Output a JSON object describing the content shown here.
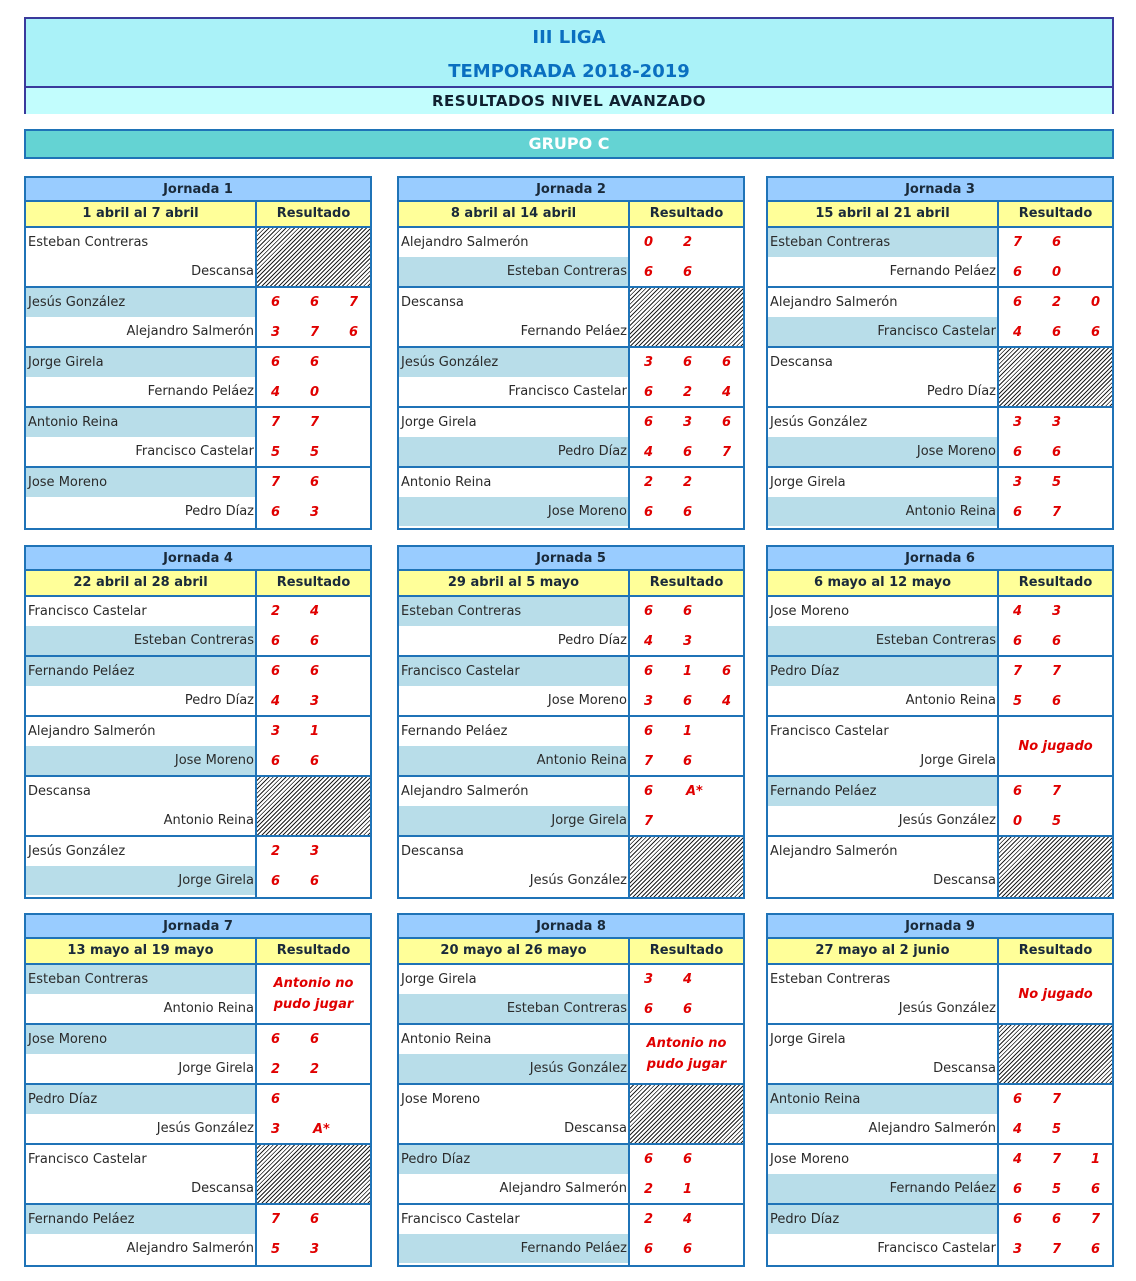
{
  "header": {
    "title": "III LIGA",
    "season": "TEMPORADA 2018-2019",
    "subtitle": "RESULTADOS NIVEL AVANZADO"
  },
  "group": "GRUPO C",
  "result_label": "Resultado",
  "colors": {
    "title": "#0a6fc0",
    "score": "#e00000",
    "winner_shade": "#b8dde9",
    "jornada_bg": "#99ccff",
    "date_bg": "#ffff99",
    "group_bg": "#64d3d3"
  },
  "jornadas": [
    {
      "title": "Jornada 1",
      "dates": "1 abril al 7 abril",
      "matches": [
        {
          "home": "Esteban Contreras",
          "away": "Descansa",
          "type": "bye",
          "winner": null
        },
        {
          "home": "Jesús González",
          "away": "Alejandro Salmerón",
          "type": "scores",
          "h": [
            "6",
            "6",
            "7"
          ],
          "a": [
            "3",
            "7",
            "6"
          ],
          "winner": "home"
        },
        {
          "home": "Jorge Girela",
          "away": "Fernando Peláez",
          "type": "scores",
          "h": [
            "6",
            "6"
          ],
          "a": [
            "4",
            "0"
          ],
          "winner": "home"
        },
        {
          "home": "Antonio Reina",
          "away": "Francisco Castelar",
          "type": "scores",
          "h": [
            "7",
            "7"
          ],
          "a": [
            "5",
            "5"
          ],
          "winner": "home"
        },
        {
          "home": "Jose Moreno",
          "away": "Pedro Díaz",
          "type": "scores",
          "h": [
            "7",
            "6"
          ],
          "a": [
            "6",
            "3"
          ],
          "winner": "home"
        }
      ]
    },
    {
      "title": "Jornada 2",
      "dates": "8 abril al 14 abril",
      "matches": [
        {
          "home": "Alejandro Salmerón",
          "away": "Esteban Contreras",
          "type": "scores",
          "h": [
            "0",
            "2"
          ],
          "a": [
            "6",
            "6"
          ],
          "winner": "away"
        },
        {
          "home": "Descansa",
          "away": "Fernando Peláez",
          "type": "bye",
          "winner": null
        },
        {
          "home": "Jesús González",
          "away": "Francisco Castelar",
          "type": "scores",
          "h": [
            "3",
            "6",
            "6"
          ],
          "a": [
            "6",
            "2",
            "4"
          ],
          "winner": "home"
        },
        {
          "home": "Jorge Girela",
          "away": "Pedro Díaz",
          "type": "scores",
          "h": [
            "6",
            "3",
            "6"
          ],
          "a": [
            "4",
            "6",
            "7"
          ],
          "winner": "away"
        },
        {
          "home": "Antonio Reina",
          "away": "Jose Moreno",
          "type": "scores",
          "h": [
            "2",
            "2"
          ],
          "a": [
            "6",
            "6"
          ],
          "winner": "away"
        }
      ]
    },
    {
      "title": "Jornada 3",
      "dates": "15 abril al 21 abril",
      "matches": [
        {
          "home": "Esteban Contreras",
          "away": "Fernando Peláez",
          "type": "scores",
          "h": [
            "7",
            "6"
          ],
          "a": [
            "6",
            "0"
          ],
          "winner": "home"
        },
        {
          "home": "Alejandro Salmerón",
          "away": "Francisco Castelar",
          "type": "scores",
          "h": [
            "6",
            "2",
            "0"
          ],
          "a": [
            "4",
            "6",
            "6"
          ],
          "winner": "away"
        },
        {
          "home": "Descansa",
          "away": "Pedro Díaz",
          "type": "bye",
          "winner": null
        },
        {
          "home": "Jesús González",
          "away": "Jose Moreno",
          "type": "scores",
          "h": [
            "3",
            "3"
          ],
          "a": [
            "6",
            "6"
          ],
          "winner": "away"
        },
        {
          "home": "Jorge Girela",
          "away": "Antonio Reina",
          "type": "scores",
          "h": [
            "3",
            "5"
          ],
          "a": [
            "6",
            "7"
          ],
          "winner": "away"
        }
      ]
    },
    {
      "title": "Jornada 4",
      "dates": "22 abril al 28 abril",
      "matches": [
        {
          "home": "Francisco Castelar",
          "away": "Esteban Contreras",
          "type": "scores",
          "h": [
            "2",
            "4"
          ],
          "a": [
            "6",
            "6"
          ],
          "winner": "away"
        },
        {
          "home": "Fernando Peláez",
          "away": "Pedro Díaz",
          "type": "scores",
          "h": [
            "6",
            "6"
          ],
          "a": [
            "4",
            "3"
          ],
          "winner": "home"
        },
        {
          "home": "Alejandro Salmerón",
          "away": "Jose Moreno",
          "type": "scores",
          "h": [
            "3",
            "1"
          ],
          "a": [
            "6",
            "6"
          ],
          "winner": "away"
        },
        {
          "home": "Descansa",
          "away": "Antonio Reina",
          "type": "bye",
          "winner": null
        },
        {
          "home": "Jesús González",
          "away": "Jorge Girela",
          "type": "scores",
          "h": [
            "2",
            "3"
          ],
          "a": [
            "6",
            "6"
          ],
          "winner": "away"
        }
      ]
    },
    {
      "title": "Jornada 5",
      "dates": "29 abril al 5 mayo",
      "matches": [
        {
          "home": "Esteban Contreras",
          "away": "Pedro Díaz",
          "type": "scores",
          "h": [
            "6",
            "6"
          ],
          "a": [
            "4",
            "3"
          ],
          "winner": "home"
        },
        {
          "home": "Francisco Castelar",
          "away": "Jose Moreno",
          "type": "scores",
          "h": [
            "6",
            "1",
            "6"
          ],
          "a": [
            "3",
            "6",
            "4"
          ],
          "winner": "home"
        },
        {
          "home": "Fernando Peláez",
          "away": "Antonio Reina",
          "type": "scores",
          "h": [
            "6",
            "1"
          ],
          "a": [
            "7",
            "6"
          ],
          "winner": "away"
        },
        {
          "home": "Alejandro Salmerón",
          "away": "Jorge Girela",
          "type": "scores",
          "h": [
            "6",
            "A*"
          ],
          "a": [
            "7"
          ],
          "winner": "away"
        },
        {
          "home": "Descansa",
          "away": "Jesús González",
          "type": "bye",
          "winner": null
        }
      ]
    },
    {
      "title": "Jornada 6",
      "dates": "6 mayo al 12 mayo",
      "matches": [
        {
          "home": "Jose Moreno",
          "away": "Esteban Contreras",
          "type": "scores",
          "h": [
            "4",
            "3"
          ],
          "a": [
            "6",
            "6"
          ],
          "winner": "away"
        },
        {
          "home": "Pedro Díaz",
          "away": "Antonio Reina",
          "type": "scores",
          "h": [
            "7",
            "7"
          ],
          "a": [
            "5",
            "6"
          ],
          "winner": "home"
        },
        {
          "home": "Francisco Castelar",
          "away": "Jorge Girela",
          "type": "note",
          "note": "No jugado",
          "winner": null
        },
        {
          "home": "Fernando Peláez",
          "away": "Jesús González",
          "type": "scores",
          "h": [
            "6",
            "7"
          ],
          "a": [
            "0",
            "5"
          ],
          "winner": "home"
        },
        {
          "home": "Alejandro Salmerón",
          "away": "Descansa",
          "type": "bye",
          "winner": null
        }
      ]
    },
    {
      "title": "Jornada 7",
      "dates": "13 mayo al 19 mayo",
      "matches": [
        {
          "home": "Esteban Contreras",
          "away": "Antonio Reina",
          "type": "note",
          "note": "Antonio no pudo jugar",
          "winner": "home"
        },
        {
          "home": "Jose Moreno",
          "away": "Jorge Girela",
          "type": "scores",
          "h": [
            "6",
            "6"
          ],
          "a": [
            "2",
            "2"
          ],
          "winner": "home"
        },
        {
          "home": "Pedro Díaz",
          "away": "Jesús González",
          "type": "scores",
          "h": [
            "6"
          ],
          "a": [
            "3",
            "A*"
          ],
          "winner": "home"
        },
        {
          "home": "Francisco Castelar",
          "away": "Descansa",
          "type": "bye",
          "winner": null
        },
        {
          "home": "Fernando Peláez",
          "away": "Alejandro Salmerón",
          "type": "scores",
          "h": [
            "7",
            "6"
          ],
          "a": [
            "5",
            "3"
          ],
          "winner": "home"
        }
      ]
    },
    {
      "title": "Jornada 8",
      "dates": "20 mayo al 26 mayo",
      "matches": [
        {
          "home": "Jorge Girela",
          "away": "Esteban Contreras",
          "type": "scores",
          "h": [
            "3",
            "4"
          ],
          "a": [
            "6",
            "6"
          ],
          "winner": "away"
        },
        {
          "home": "Antonio Reina",
          "away": "Jesús González",
          "type": "note",
          "note": "Antonio no pudo jugar",
          "winner": "away"
        },
        {
          "home": "Jose Moreno",
          "away": "Descansa",
          "type": "bye",
          "winner": null
        },
        {
          "home": "Pedro Díaz",
          "away": "Alejandro Salmerón",
          "type": "scores",
          "h": [
            "6",
            "6"
          ],
          "a": [
            "2",
            "1"
          ],
          "winner": "home"
        },
        {
          "home": "Francisco Castelar",
          "away": "Fernando Peláez",
          "type": "scores",
          "h": [
            "2",
            "4"
          ],
          "a": [
            "6",
            "6"
          ],
          "winner": "away"
        }
      ]
    },
    {
      "title": "Jornada 9",
      "dates": "27 mayo al 2 junio",
      "matches": [
        {
          "home": "Esteban Contreras",
          "away": "Jesús González",
          "type": "note",
          "note": "No jugado",
          "winner": null
        },
        {
          "home": "Jorge Girela",
          "away": "Descansa",
          "type": "bye",
          "winner": null
        },
        {
          "home": "Antonio Reina",
          "away": "Alejandro Salmerón",
          "type": "scores",
          "h": [
            "6",
            "7"
          ],
          "a": [
            "4",
            "5"
          ],
          "winner": "home"
        },
        {
          "home": "Jose Moreno",
          "away": "Fernando Peláez",
          "type": "scores",
          "h": [
            "4",
            "7",
            "1"
          ],
          "a": [
            "6",
            "5",
            "6"
          ],
          "winner": "away"
        },
        {
          "home": "Pedro Díaz",
          "away": "Francisco Castelar",
          "type": "scores",
          "h": [
            "6",
            "6",
            "7"
          ],
          "a": [
            "3",
            "7",
            "6"
          ],
          "winner": "home"
        }
      ]
    }
  ]
}
